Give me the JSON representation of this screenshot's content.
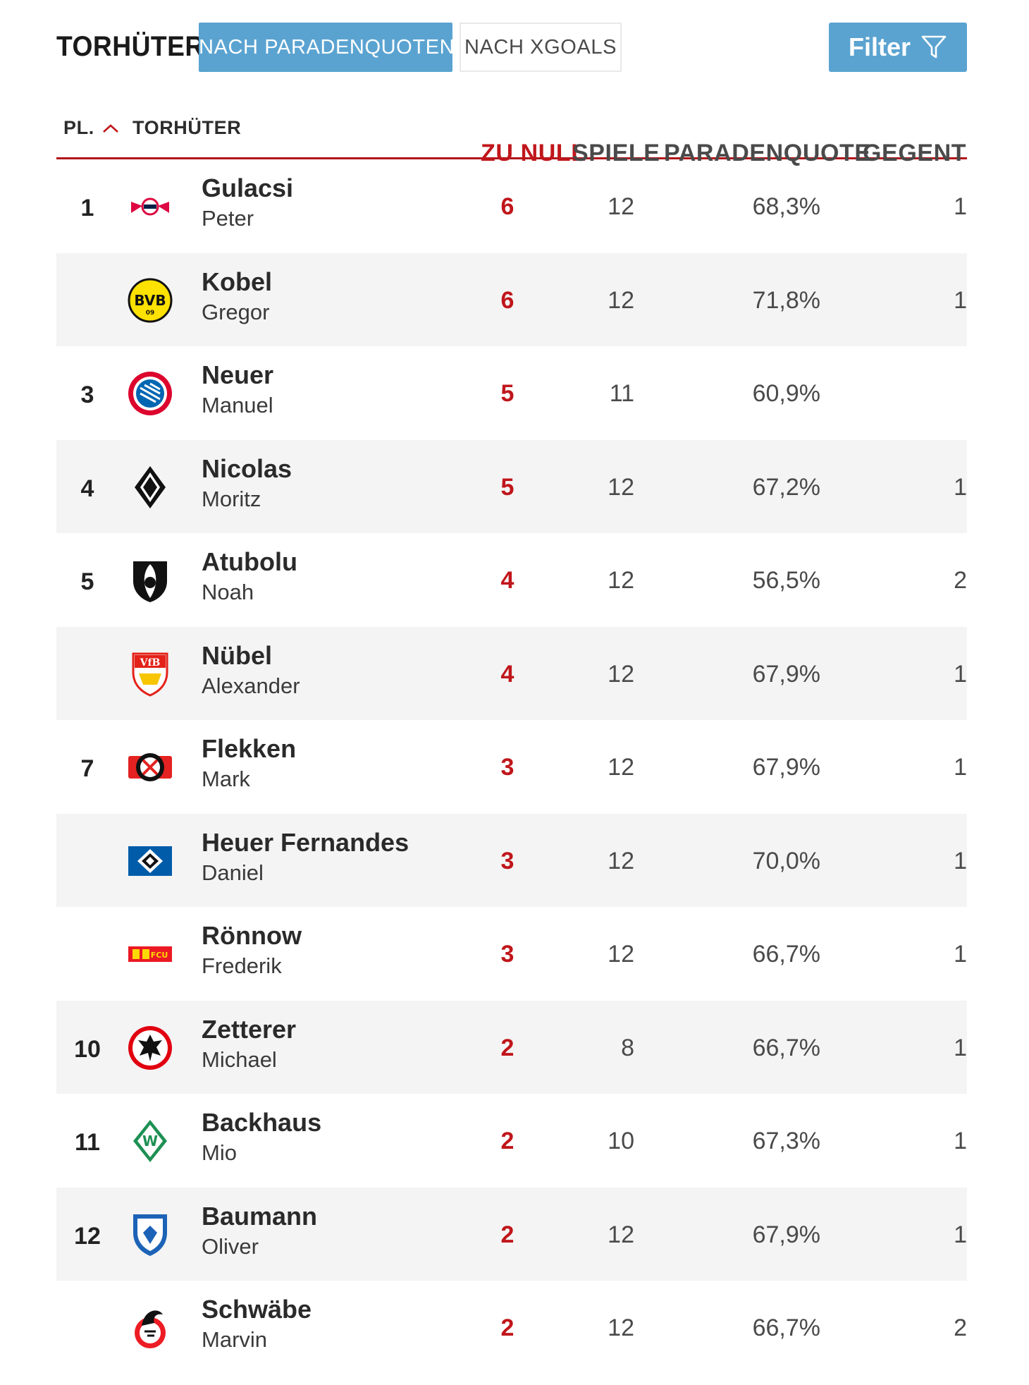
{
  "header": {
    "title": "TORHÜTER",
    "tabs": [
      {
        "label": "NACH PARADENQUOTEN",
        "active": true
      },
      {
        "label": "NACH XGOALS",
        "active": false
      }
    ],
    "filter_label": "Filter",
    "filter_icon": "funnel-icon"
  },
  "colors": {
    "accent_blue": "#5aa3d1",
    "accent_red": "#b1151b",
    "row_alt": "#f4f4f4"
  },
  "table": {
    "columns": {
      "pl": "PL.",
      "sort_icon": "chevron-up-icon",
      "torhueter": "TORHÜTER",
      "zu_null": "ZU NULL",
      "spiele": "SPIELE",
      "paradenquote": "PARADENQUOTE",
      "gegentore": "GEGENTOR"
    },
    "rows": [
      {
        "rank": "1",
        "club_icon": "rb-leipzig-logo",
        "last": "Gulacsi",
        "first": "Peter",
        "zu_null": "6",
        "spiele": "12",
        "paradenquote": "68,3%",
        "gegentore": "1"
      },
      {
        "rank": "",
        "club_icon": "bvb-logo",
        "last": "Kobel",
        "first": "Gregor",
        "zu_null": "6",
        "spiele": "12",
        "paradenquote": "71,8%",
        "gegentore": "1"
      },
      {
        "rank": "3",
        "club_icon": "fc-bayern-logo",
        "last": "Neuer",
        "first": "Manuel",
        "zu_null": "5",
        "spiele": "11",
        "paradenquote": "60,9%",
        "gegentore": ""
      },
      {
        "rank": "4",
        "club_icon": "gladbach-logo",
        "last": "Nicolas",
        "first": "Moritz",
        "zu_null": "5",
        "spiele": "12",
        "paradenquote": "67,2%",
        "gegentore": "1"
      },
      {
        "rank": "5",
        "club_icon": "sc-freiburg-logo",
        "last": "Atubolu",
        "first": "Noah",
        "zu_null": "4",
        "spiele": "12",
        "paradenquote": "56,5%",
        "gegentore": "2"
      },
      {
        "rank": "",
        "club_icon": "vfb-stuttgart-logo",
        "last": "Nübel",
        "first": "Alexander",
        "zu_null": "4",
        "spiele": "12",
        "paradenquote": "67,9%",
        "gegentore": "1"
      },
      {
        "rank": "7",
        "club_icon": "leverkusen-logo",
        "last": "Flekken",
        "first": "Mark",
        "zu_null": "3",
        "spiele": "12",
        "paradenquote": "67,9%",
        "gegentore": "1"
      },
      {
        "rank": "",
        "club_icon": "hsv-logo",
        "last": "Heuer Fernandes",
        "first": "Daniel",
        "zu_null": "3",
        "spiele": "12",
        "paradenquote": "70,0%",
        "gegentore": "1"
      },
      {
        "rank": "",
        "club_icon": "union-berlin-logo",
        "last": "Rönnow",
        "first": "Frederik",
        "zu_null": "3",
        "spiele": "12",
        "paradenquote": "66,7%",
        "gegentore": "1"
      },
      {
        "rank": "10",
        "club_icon": "eintracht-frankfurt-logo",
        "last": "Zetterer",
        "first": "Michael",
        "zu_null": "2",
        "spiele": "8",
        "paradenquote": "66,7%",
        "gegentore": "1"
      },
      {
        "rank": "11",
        "club_icon": "werder-bremen-logo",
        "last": "Backhaus",
        "first": "Mio",
        "zu_null": "2",
        "spiele": "10",
        "paradenquote": "67,3%",
        "gegentore": "1"
      },
      {
        "rank": "12",
        "club_icon": "hoffenheim-logo",
        "last": "Baumann",
        "first": "Oliver",
        "zu_null": "2",
        "spiele": "12",
        "paradenquote": "67,9%",
        "gegentore": "1"
      },
      {
        "rank": "",
        "club_icon": "fc-koeln-logo",
        "last": "Schwäbe",
        "first": "Marvin",
        "zu_null": "2",
        "spiele": "12",
        "paradenquote": "66,7%",
        "gegentore": "2"
      }
    ]
  }
}
